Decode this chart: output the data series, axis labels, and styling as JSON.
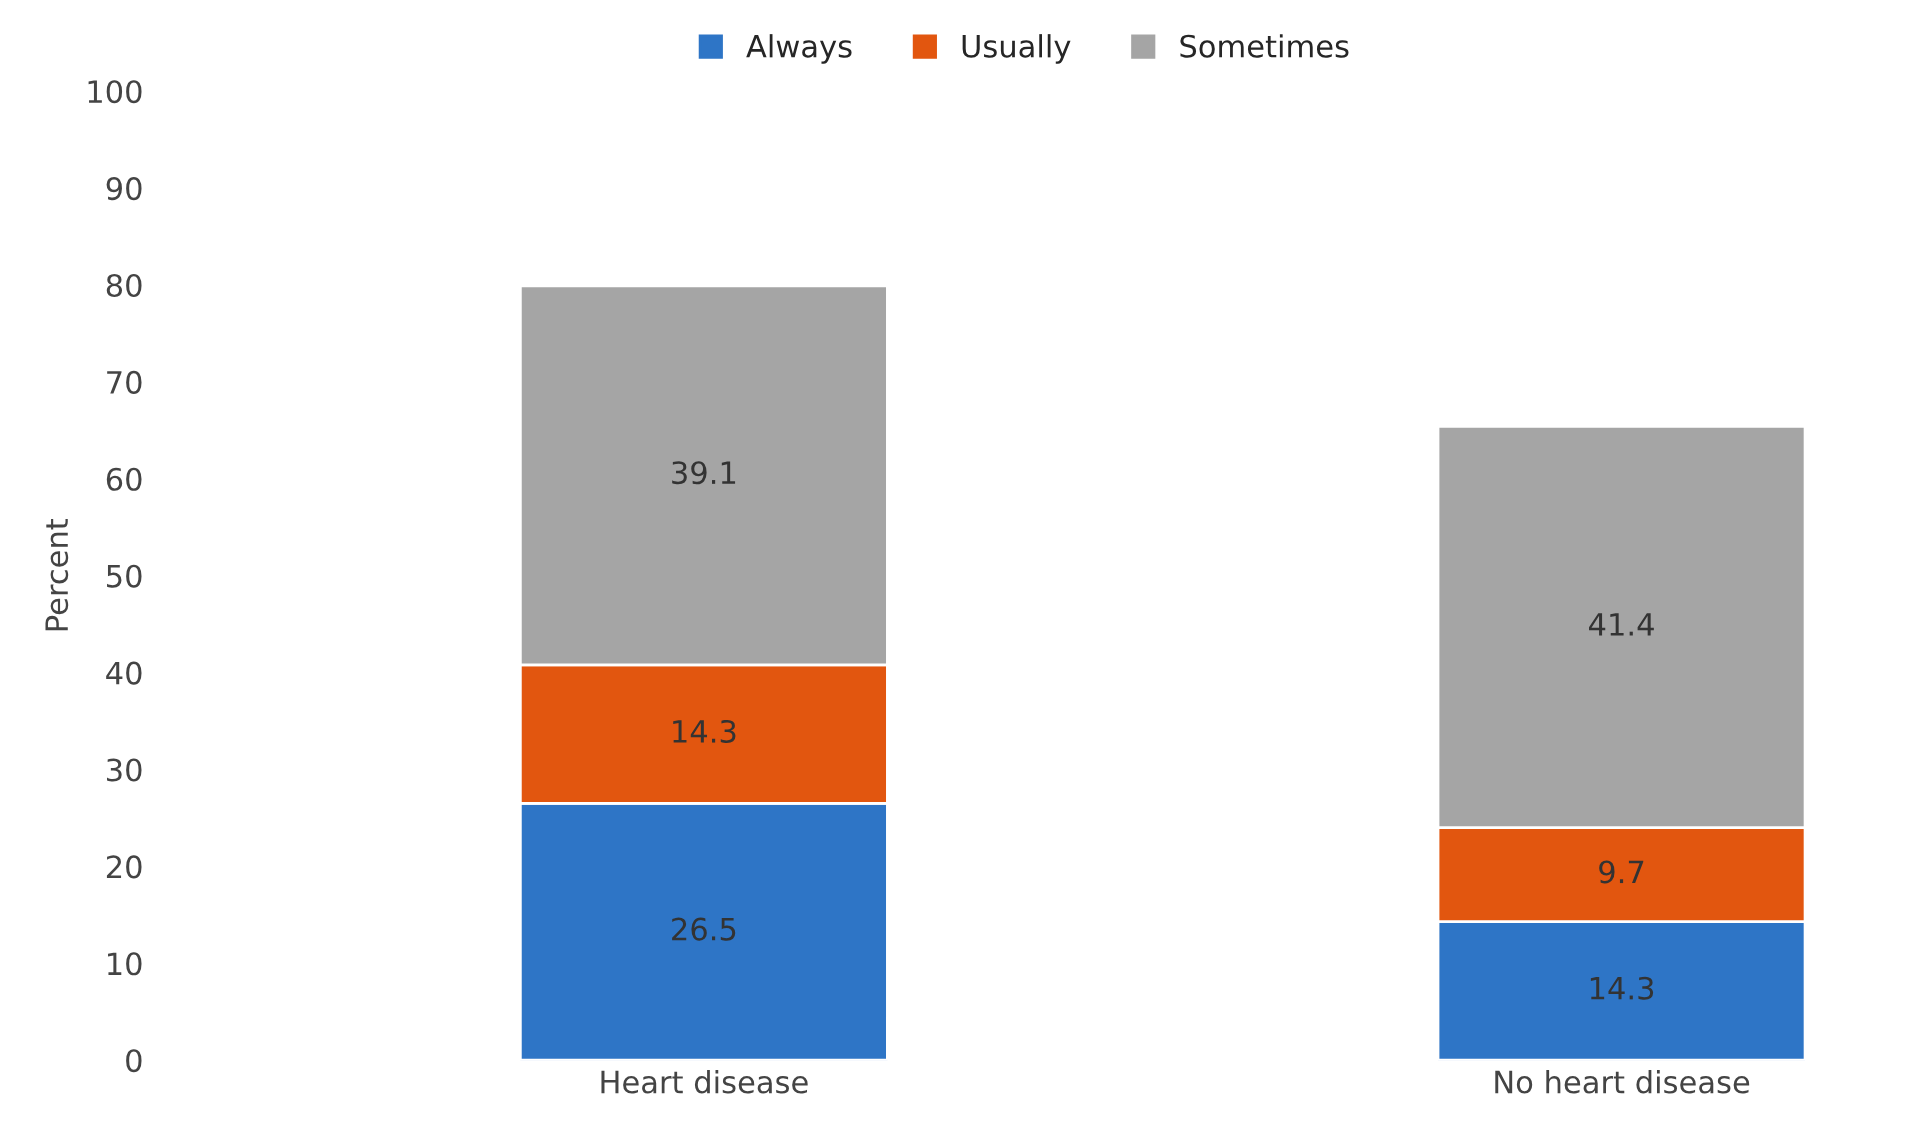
{
  "chart_data": {
    "type": "bar",
    "stacked": true,
    "ylabel": "Percent",
    "categories": [
      "Heart disease",
      "No heart disease"
    ],
    "series": [
      {
        "name": "Always",
        "color": "#2e75c6",
        "values": [
          26.5,
          14.3
        ]
      },
      {
        "name": "Usually",
        "color": "#e2560f",
        "values": [
          14.3,
          9.7
        ]
      },
      {
        "name": "Sometimes",
        "color": "#a5a5a5",
        "values": [
          39.1,
          41.4
        ]
      }
    ],
    "ylim": [
      0,
      100
    ],
    "yticks": [
      0,
      10,
      20,
      30,
      40,
      50,
      60,
      70,
      80,
      90,
      100
    ],
    "data_labels": true,
    "legend": "top",
    "grid": false
  }
}
